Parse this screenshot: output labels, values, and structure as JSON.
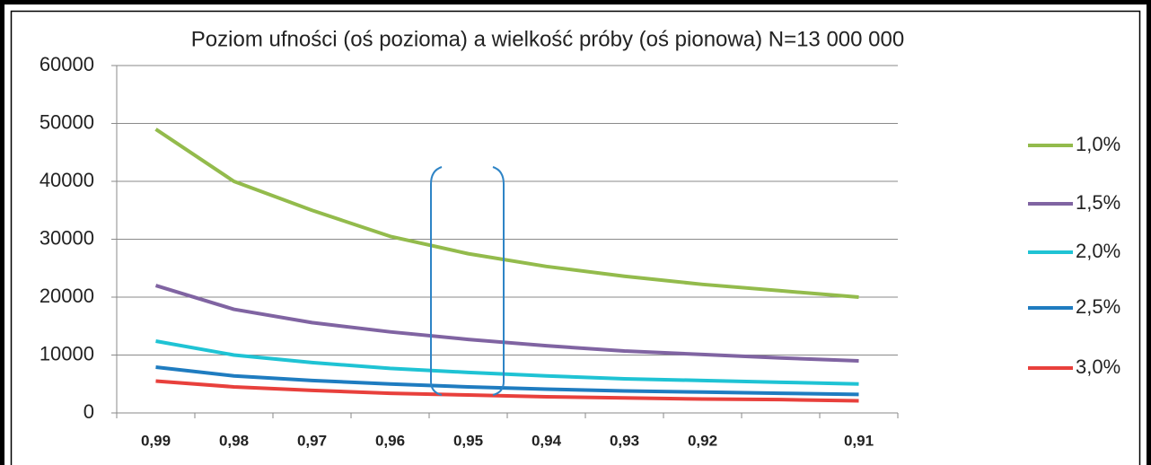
{
  "chart_data": {
    "type": "line",
    "title": "Poziom ufności (oś pozioma) a wielkość próby (oś pionowa) N=13 000 000",
    "categories": [
      "0,99",
      "0,98",
      "0,97",
      "0,96",
      "0,95",
      "0,94",
      "0,93",
      "0,92",
      null,
      "0,91"
    ],
    "series": [
      {
        "name": "1,0%",
        "color": "#93bb4c",
        "values": [
          49000,
          40000,
          35000,
          30500,
          27500,
          25300,
          23600,
          22200,
          21100,
          20000
        ]
      },
      {
        "name": "1,5%",
        "color": "#8064a2",
        "values": [
          22000,
          17900,
          15600,
          14000,
          12700,
          11600,
          10700,
          10100,
          9500,
          9000
        ]
      },
      {
        "name": "2,0%",
        "color": "#1fc3d4",
        "values": [
          12400,
          10000,
          8700,
          7700,
          7000,
          6400,
          5900,
          5600,
          5300,
          5000
        ]
      },
      {
        "name": "2,5%",
        "color": "#1f7cc0",
        "values": [
          7900,
          6400,
          5600,
          5000,
          4500,
          4100,
          3800,
          3600,
          3400,
          3200
        ]
      },
      {
        "name": "3,0%",
        "color": "#e8403c",
        "values": [
          5500,
          4500,
          3900,
          3400,
          3100,
          2800,
          2600,
          2400,
          2300,
          2100
        ]
      }
    ],
    "ylim": [
      0,
      60000
    ],
    "yticks": [
      0,
      10000,
      20000,
      30000,
      40000,
      50000,
      60000
    ],
    "grid": true,
    "legend": "right"
  }
}
